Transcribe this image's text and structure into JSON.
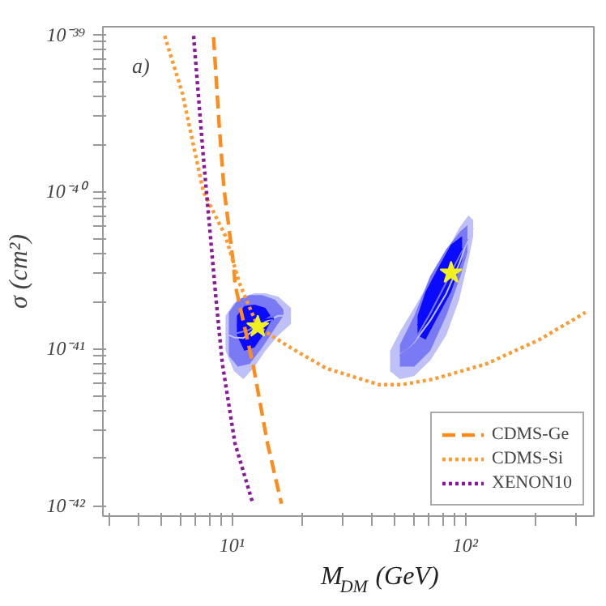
{
  "chart_data": {
    "type": "line",
    "xlabel": "M$_{DM}$ (GeV)",
    "ylabel": "σ (cm²)",
    "log": "xy",
    "grid": false,
    "legend": "bottom right",
    "annotations": [
      "a)"
    ],
    "xlim": [
      2.8,
      355
    ],
    "ylim": [
      8.6e-43,
      1.12e-39
    ],
    "xticks": [
      {
        "value": 3,
        "label": null
      },
      {
        "value": 4,
        "label": null
      },
      {
        "value": 5,
        "label": null
      },
      {
        "value": 6,
        "label": null
      },
      {
        "value": 7,
        "label": null
      },
      {
        "value": 8,
        "label": null
      },
      {
        "value": 9,
        "label": null
      },
      {
        "value": 10,
        "label": "10¹"
      },
      {
        "value": 20,
        "label": null
      },
      {
        "value": 30,
        "label": null
      },
      {
        "value": 40,
        "label": null
      },
      {
        "value": 50,
        "label": null
      },
      {
        "value": 60,
        "label": null
      },
      {
        "value": 70,
        "label": null
      },
      {
        "value": 80,
        "label": null
      },
      {
        "value": 90,
        "label": null
      },
      {
        "value": 100,
        "label": "10²"
      },
      {
        "value": 200,
        "label": null
      },
      {
        "value": 300,
        "label": null
      }
    ],
    "yticks": [
      {
        "value": 1e-42,
        "label": "10⁻⁴²"
      },
      {
        "value": 2e-42,
        "label": null
      },
      {
        "value": 3e-42,
        "label": null
      },
      {
        "value": 4e-42,
        "label": null
      },
      {
        "value": 5e-42,
        "label": null
      },
      {
        "value": 6e-42,
        "label": null
      },
      {
        "value": 7e-42,
        "label": null
      },
      {
        "value": 8e-42,
        "label": null
      },
      {
        "value": 9e-42,
        "label": null
      },
      {
        "value": 1e-41,
        "label": "10⁻⁴¹"
      },
      {
        "value": 2e-41,
        "label": null
      },
      {
        "value": 3e-41,
        "label": null
      },
      {
        "value": 4e-41,
        "label": null
      },
      {
        "value": 5e-41,
        "label": null
      },
      {
        "value": 6e-41,
        "label": null
      },
      {
        "value": 7e-41,
        "label": null
      },
      {
        "value": 8e-41,
        "label": null
      },
      {
        "value": 9e-41,
        "label": null
      },
      {
        "value": 1e-40,
        "label": "10⁻⁴⁰"
      },
      {
        "value": 2e-40,
        "label": null
      },
      {
        "value": 3e-40,
        "label": null
      },
      {
        "value": 4e-40,
        "label": null
      },
      {
        "value": 5e-40,
        "label": null
      },
      {
        "value": 6e-40,
        "label": null
      },
      {
        "value": 7e-40,
        "label": null
      },
      {
        "value": 8e-40,
        "label": null
      },
      {
        "value": 9e-40,
        "label": null
      },
      {
        "value": 1e-39,
        "label": "10⁻³⁹"
      }
    ],
    "series": [
      {
        "type": "line",
        "color": "#c0c0f8",
        "x": [
          9.39,
          10.2,
          11.2,
          12.5,
          13.9,
          15.8,
          17.9
        ],
        "values": [
          1.25e-41,
          1.18e-41,
          1.17e-41,
          1.32e-41,
          1.48e-41,
          1.62e-41,
          1.62e-41
        ],
        "lower": [
          9.7e-42,
          7.2e-42,
          6.4e-42,
          7.7e-42,
          9.7e-42,
          1.22e-41,
          1.44e-41
        ],
        "upper": [
          1.62e-41,
          1.95e-41,
          2.14e-41,
          2.25e-41,
          2.25e-41,
          2.14e-41,
          1.82e-41
        ]
      },
      {
        "type": "line",
        "color": "#7a7af5",
        "x": [
          9.7,
          10.6,
          11.9,
          13.5,
          15.3,
          16.6
        ],
        "values": [
          1.24e-41,
          1.26e-41,
          1.32e-41,
          1.49e-41,
          1.66e-41,
          1.7e-41
        ],
        "lower": [
          9e-42,
          7.7e-42,
          8e-42,
          1.02e-41,
          1.35e-41,
          1.62e-41
        ],
        "upper": [
          1.7e-41,
          2.05e-41,
          2.19e-41,
          2.19e-41,
          2.05e-41,
          1.78e-41
        ]
      },
      {
        "type": "line",
        "color": "#0a0aff",
        "x": [
          10.5,
          11.3,
          12.5,
          13.9,
          15.1
        ],
        "values": [
          1.41e-41,
          1.35e-41,
          1.4e-41,
          1.53e-41,
          1.56e-41
        ],
        "lower": [
          1.22e-41,
          9.7e-42,
          1.02e-41,
          1.28e-41,
          1.62e-41
        ],
        "upper": [
          1.62e-41,
          1.87e-41,
          1.91e-41,
          1.82e-41,
          1.51e-41
        ]
      },
      {
        "type": "line",
        "color": "#c0c0f8",
        "x": [
          47.6,
          52.4,
          60.4,
          70.7,
          82.8,
          94.0,
          103,
          108
        ],
        "values": [
          null,
          9.1e-42,
          1.1e-41,
          1.51e-41,
          2.24e-41,
          3.46e-41,
          5.08e-41,
          5.86e-41
        ],
        "lower": [
          7.2e-42,
          6.4e-42,
          6.7e-42,
          8.4e-42,
          1.22e-41,
          2.05e-41,
          3.66e-41,
          5.2e-41
        ],
        "upper": [
          9.7e-42,
          1.28e-41,
          1.82e-41,
          2.71e-41,
          4.1e-41,
          5.85e-41,
          7.05e-41,
          6.6e-41
        ]
      },
      {
        "type": "line",
        "color": "#7a7af5",
        "x": [
          52.4,
          60.4,
          70.7,
          82.8,
          95.3,
          102
        ],
        "values": [
          9e-42,
          1.12e-41,
          1.68e-41,
          2.64e-41,
          4.03e-41,
          5e-41
        ],
        "lower": [
          7.7e-42,
          7.7e-42,
          9.7e-42,
          1.62e-41,
          2.9e-41,
          4.1e-41
        ],
        "upper": [
          1.06e-41,
          1.62e-41,
          2.9e-41,
          4.3e-41,
          5.6e-41,
          6.1e-41
        ]
      },
      {
        "type": "line",
        "color": "#0a0aff",
        "x": [
          62.4,
          67.5,
          76.5,
          86.8,
          96.8
        ],
        "values": [
          1.41e-41,
          1.62e-41,
          2.3e-41,
          3.25e-41,
          4.36e-41
        ],
        "lower": [
          1.22e-41,
          1.14e-41,
          1.62e-41,
          2.3e-41,
          3.66e-41
        ],
        "upper": [
          1.62e-41,
          2.3e-41,
          3.27e-41,
          4.6e-41,
          5.2e-41
        ]
      },
      {
        "type": "line",
        "name": "CDMS-Ge",
        "color": "#ff8c1a",
        "line_style": "dashed",
        "x": [
          8.34,
          8.81,
          9.24,
          10.2,
          10.3,
          12.3,
          14.2,
          16.3
        ],
        "values": [
          9.6e-40,
          2.7e-40,
          1.05e-40,
          3.27e-41,
          2.58e-41,
          8e-42,
          2.5e-42,
          1.03e-42
        ]
      },
      {
        "type": "line",
        "name": "CDMS-Si",
        "color": "#ff9a30",
        "line_style": "dotted",
        "x": [
          5.15,
          6.14,
          7.54,
          9.39,
          10.3,
          10.8,
          12.9,
          17.7,
          25.3,
          42.7,
          53.2,
          72.9,
          123,
          207,
          327
        ],
        "values": [
          9.8e-40,
          4.2e-40,
          1e-40,
          5.2e-41,
          3.27e-41,
          2.58e-41,
          1.38e-41,
          1.02e-41,
          7.5e-42,
          5.9e-42,
          5.9e-42,
          6.4e-42,
          8e-42,
          1.14e-41,
          1.7e-41
        ]
      },
      {
        "type": "line",
        "name": "XENON10",
        "color": "#8b1a9b",
        "line_style": "dotted",
        "x": [
          6.85,
          7.54,
          8.55,
          9.1,
          10.3,
          12.3
        ],
        "values": [
          9.8e-40,
          1.67e-40,
          2.05e-41,
          8e-42,
          2.5e-42,
          1.03e-42
        ]
      },
      {
        "type": "scatter",
        "color": "#f0f020",
        "marker": "star",
        "x": [
          12.9,
          86.8
        ],
        "values": [
          1.38e-41,
          3.04e-41
        ]
      }
    ]
  }
}
